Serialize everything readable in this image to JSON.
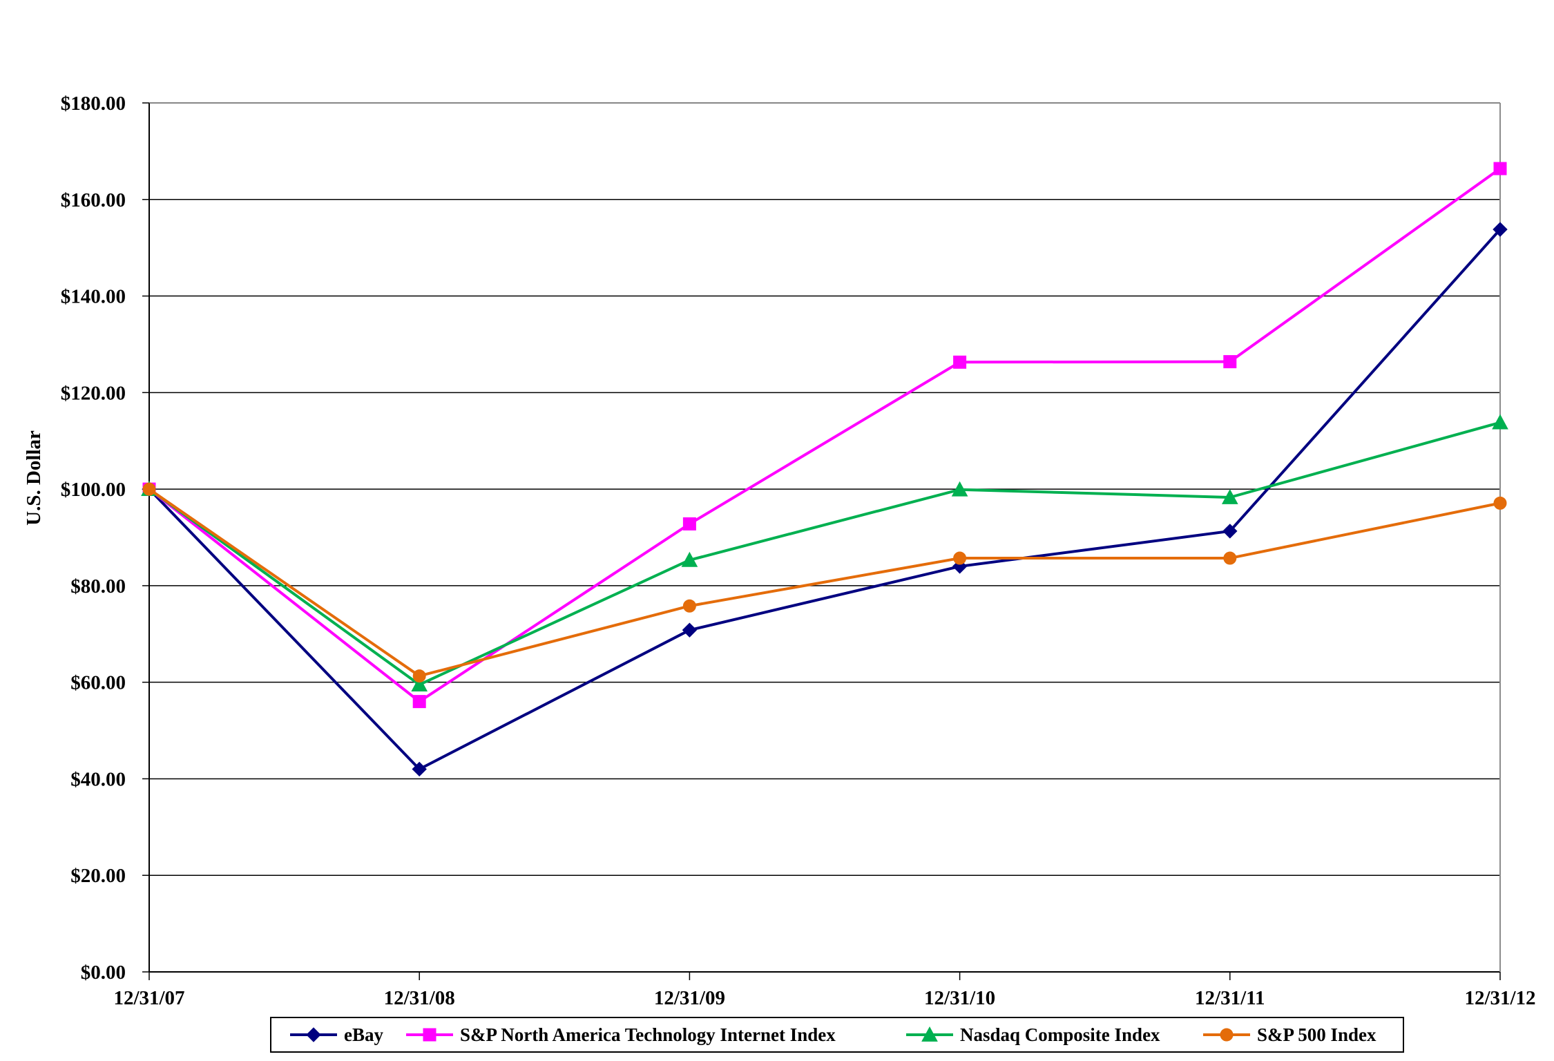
{
  "chart_data": {
    "type": "line",
    "title": "",
    "xlabel": "",
    "ylabel": "U.S. Dollar",
    "categories": [
      "12/31/07",
      "12/31/08",
      "12/31/09",
      "12/31/10",
      "12/31/11",
      "12/31/12"
    ],
    "ylim": [
      0,
      180
    ],
    "yticks": [
      0,
      20,
      40,
      60,
      80,
      100,
      120,
      140,
      160,
      180
    ],
    "ytick_labels": [
      "$0.00",
      "$20.00",
      "$40.00",
      "$60.00",
      "$80.00",
      "$100.00",
      "$120.00",
      "$140.00",
      "$160.00",
      "$180.00"
    ],
    "grid": "horizontal",
    "legend_position": "bottom",
    "series": [
      {
        "name": "eBay",
        "marker": "diamond",
        "color": "#000080",
        "values": [
          100,
          42,
          70.8,
          84,
          91.3,
          153.8
        ]
      },
      {
        "name": "S&P North America Technology Internet Index",
        "marker": "square",
        "color": "#FF00FF",
        "values": [
          100,
          56,
          92.8,
          126.3,
          126.4,
          166.4
        ]
      },
      {
        "name": "Nasdaq Composite Index",
        "marker": "triangle",
        "color": "#00B050",
        "values": [
          100,
          59.5,
          85.3,
          99.9,
          98.3,
          113.8
        ]
      },
      {
        "name": "S&P 500 Index",
        "marker": "circle",
        "color": "#E46C0A",
        "values": [
          100,
          61.3,
          75.8,
          85.7,
          85.7,
          97.1
        ]
      }
    ]
  }
}
